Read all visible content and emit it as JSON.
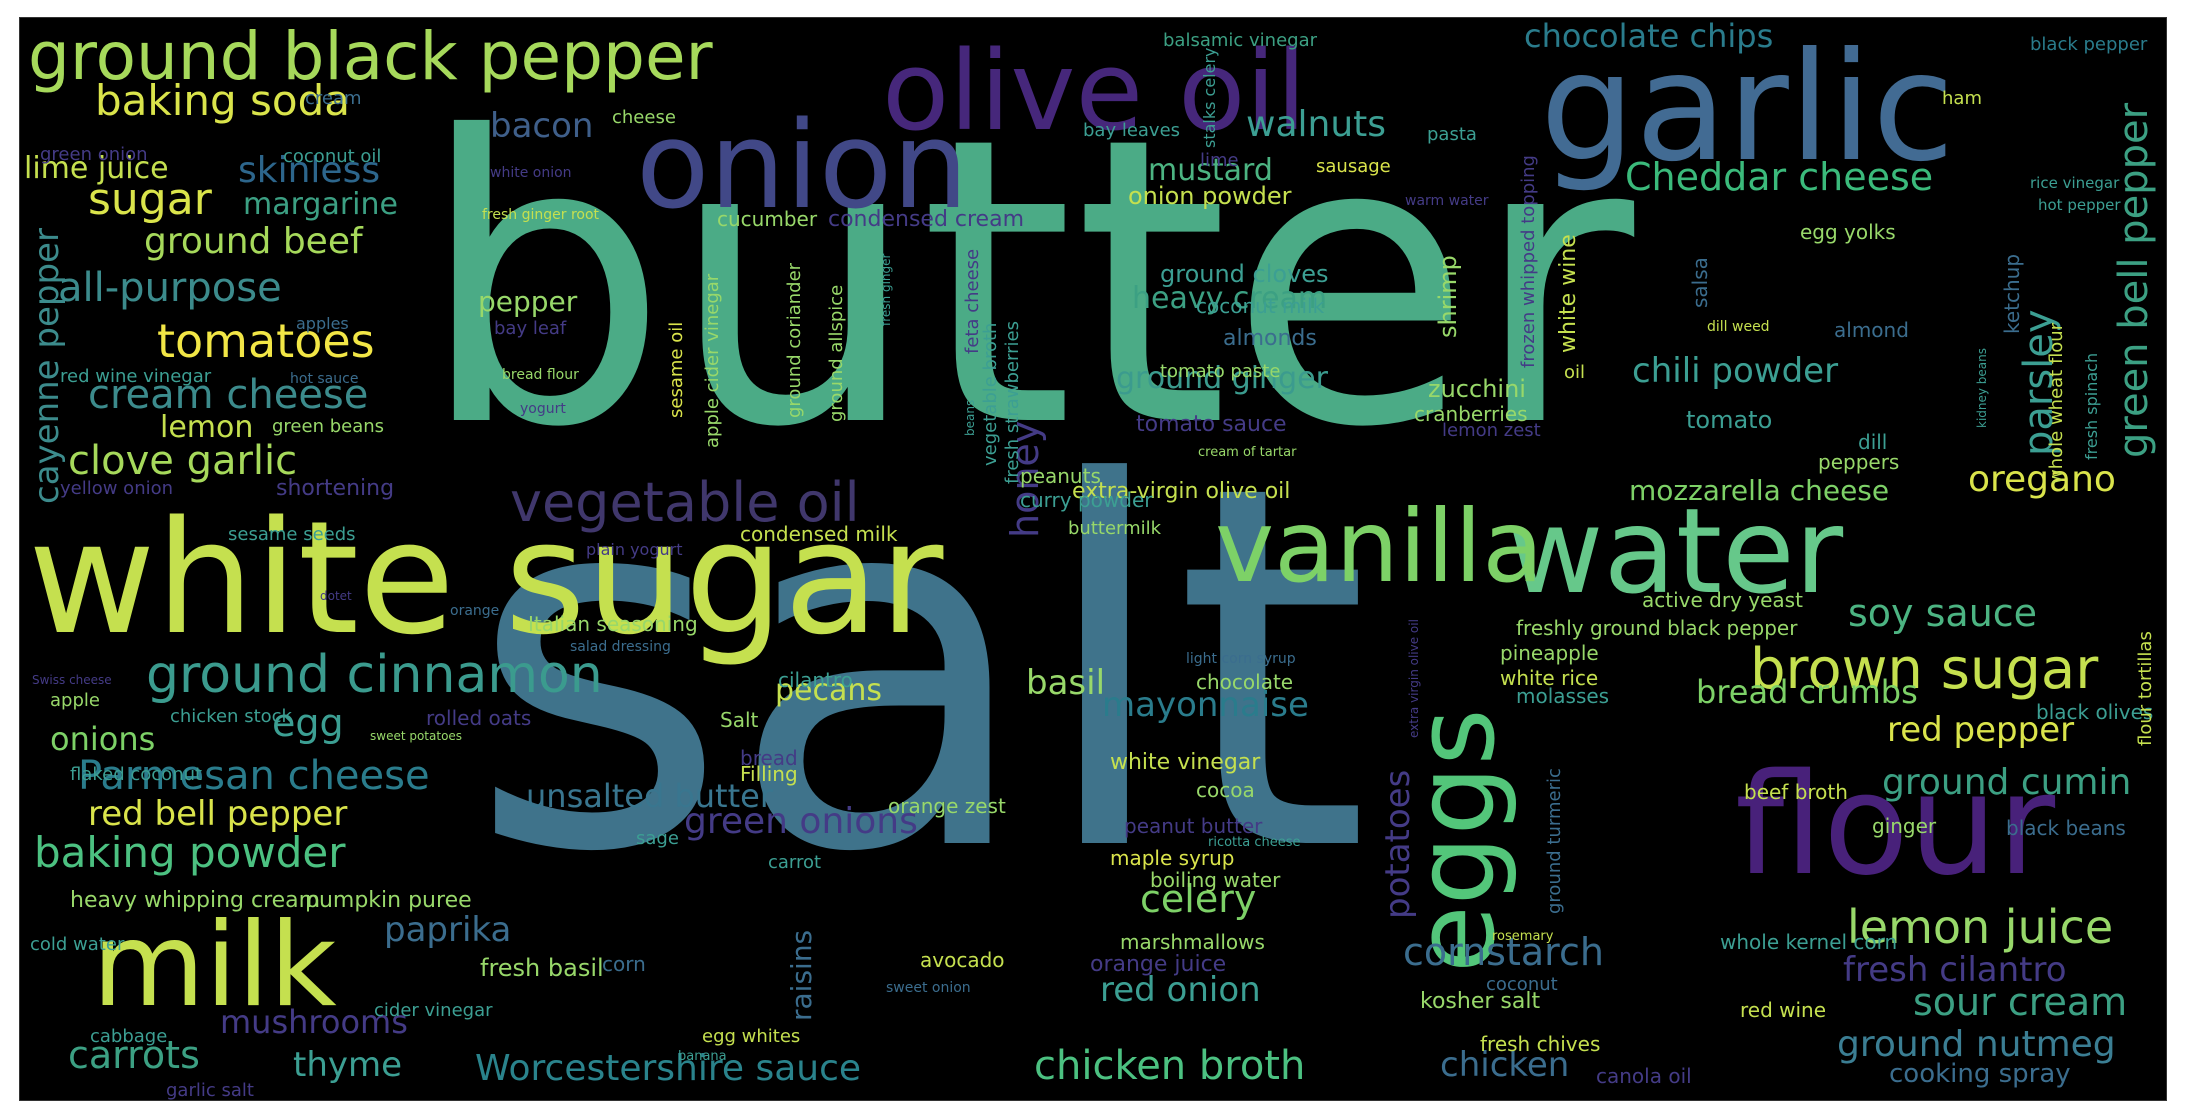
{
  "words": [
    {
      "text": "butter",
      "color": "#4bab86"
    },
    {
      "text": "salt",
      "color": "#3f738b"
    },
    {
      "text": "white sugar",
      "color": "#c5e04f"
    },
    {
      "text": "water",
      "color": "#66c88a"
    },
    {
      "text": "garlic",
      "color": "#426b93"
    },
    {
      "text": "vanilla",
      "color": "#7dd167"
    },
    {
      "text": "onion",
      "color": "#414887"
    },
    {
      "text": "olive oil",
      "color": "#46277b"
    },
    {
      "text": "flour",
      "color": "#48217a"
    },
    {
      "text": "eggs",
      "color": "#53c67a"
    },
    {
      "text": "milk",
      "color": "#c5e04f"
    },
    {
      "text": "ground black pepper",
      "color": "#a6d95b"
    },
    {
      "text": "vegetable oil",
      "color": "#40376c"
    },
    {
      "text": "brown sugar",
      "color": "#c5e04f"
    },
    {
      "text": "ground cinnamon",
      "color": "#3b9b8e"
    },
    {
      "text": "lemon juice",
      "color": "#98d86a"
    },
    {
      "text": "baking soda",
      "color": "#dae44b"
    },
    {
      "text": "Parmesan cheese",
      "color": "#2a7c8c"
    },
    {
      "text": "baking powder",
      "color": "#4cc181"
    },
    {
      "text": "chocolate chips",
      "color": "#2a7c8c"
    },
    {
      "text": "Cheddar cheese",
      "color": "#3bba7b"
    },
    {
      "text": "chicken broth",
      "color": "#4cc181"
    },
    {
      "text": "Worcestershire sauce",
      "color": "#2a838c"
    },
    {
      "text": "sour cream",
      "color": "#3ca083"
    },
    {
      "text": "ground nutmeg",
      "color": "#3b7e93"
    },
    {
      "text": "fresh cilantro",
      "color": "#443b86"
    },
    {
      "text": "tomatoes",
      "color": "#f2e646"
    },
    {
      "text": "cream cheese",
      "color": "#3c8b8c"
    },
    {
      "text": "clove garlic",
      "color": "#a6d95b"
    },
    {
      "text": "all-purpose",
      "color": "#3c8b8c"
    },
    {
      "text": "ground beef",
      "color": "#a6d95b"
    },
    {
      "text": "sugar",
      "color": "#dae44b"
    },
    {
      "text": "skinless",
      "color": "#2d668c"
    },
    {
      "text": "margarine",
      "color": "#3ca083"
    },
    {
      "text": "lime juice",
      "color": "#c5e04f"
    },
    {
      "text": "bacon",
      "color": "#3f5f8a"
    },
    {
      "text": "walnuts",
      "color": "#3c9f93"
    },
    {
      "text": "mustard",
      "color": "#4cb482"
    },
    {
      "text": "onion powder",
      "color": "#c5e04f"
    },
    {
      "text": "red bell pepper",
      "color": "#dae44b"
    },
    {
      "text": "egg",
      "color": "#3c9f93"
    },
    {
      "text": "onions",
      "color": "#7dd167"
    },
    {
      "text": "unsalted butter",
      "color": "#39768f"
    },
    {
      "text": "green onions",
      "color": "#443b86"
    },
    {
      "text": "mayonnaise",
      "color": "#2a7c8c"
    },
    {
      "text": "red pepper",
      "color": "#dae44b"
    },
    {
      "text": "ground cumin",
      "color": "#3ca083"
    },
    {
      "text": "bread crumbs",
      "color": "#7dd167"
    },
    {
      "text": "soy sauce",
      "color": "#4cb482"
    },
    {
      "text": "oregano",
      "color": "#dae44b"
    },
    {
      "text": "mozzarella cheese",
      "color": "#7dd167"
    },
    {
      "text": "chili powder",
      "color": "#3c9f93"
    },
    {
      "text": "parsley",
      "color": "#3c9f93"
    },
    {
      "text": "green bell pepper",
      "color": "#3ca083"
    },
    {
      "text": "cayenne pepper",
      "color": "#3c8b8c"
    },
    {
      "text": "honey",
      "color": "#443b86"
    },
    {
      "text": "potatoes",
      "color": "#443b86"
    },
    {
      "text": "eggs",
      "color": "#53c67a"
    },
    {
      "text": "cornstarch",
      "color": "#3b6d8e"
    },
    {
      "text": "paprika",
      "color": "#3b6d8e"
    },
    {
      "text": "mushrooms",
      "color": "#443b86"
    },
    {
      "text": "carrots",
      "color": "#3ca083"
    },
    {
      "text": "thyme",
      "color": "#3c9f93"
    },
    {
      "text": "celery",
      "color": "#7dd167"
    },
    {
      "text": "red onion",
      "color": "#3c9f93"
    },
    {
      "text": "chicken",
      "color": "#3b6d8e"
    },
    {
      "text": "basil",
      "color": "#98d86a"
    },
    {
      "text": "pecans",
      "color": "#c5e04f"
    },
    {
      "text": "heavy cream",
      "color": "#3ca083"
    },
    {
      "text": "ground ginger",
      "color": "#3b9b8e"
    },
    {
      "text": "pepper",
      "color": "#98d86a"
    },
    {
      "text": "lemon",
      "color": "#c5e04f"
    },
    {
      "text": "extra-virgin olive oil",
      "color": "#c5e04f"
    },
    {
      "text": "kosher salt",
      "color": "#98d86a"
    },
    {
      "text": "cooking spray",
      "color": "#3b6d8e"
    },
    {
      "text": "heavy whipping cream",
      "color": "#98d86a"
    },
    {
      "text": "pumpkin puree",
      "color": "#98d86a"
    },
    {
      "text": "raisins",
      "color": "#3b6d8e"
    },
    {
      "text": "fresh basil",
      "color": "#98d86a"
    },
    {
      "text": "tomato",
      "color": "#3c9f93"
    },
    {
      "text": "zucchini",
      "color": "#98d86a"
    },
    {
      "text": "shrimp",
      "color": "#98d86a"
    },
    {
      "text": "ground cloves",
      "color": "#3c9f93"
    },
    {
      "text": "balsamic vinegar",
      "color": "#3ca083"
    },
    {
      "text": "black pepper",
      "color": "#2a7c8c"
    },
    {
      "text": "bay leaves",
      "color": "#3c9f93"
    },
    {
      "text": "pasta",
      "color": "#3c9f93"
    },
    {
      "text": "ham",
      "color": "#c5e04f"
    },
    {
      "text": "cheese",
      "color": "#98d86a"
    },
    {
      "text": "coconut oil",
      "color": "#3c9f93"
    },
    {
      "text": "green onion",
      "color": "#443b86"
    },
    {
      "text": "cream",
      "color": "#3b6d8e"
    },
    {
      "text": "sausage",
      "color": "#dae44b"
    },
    {
      "text": "lime",
      "color": "#443b86"
    },
    {
      "text": "white onion",
      "color": "#443b86"
    },
    {
      "text": "fresh ginger root",
      "color": "#c5e04f"
    },
    {
      "text": "warm water",
      "color": "#443b86"
    },
    {
      "text": "rice vinegar",
      "color": "#3c9f93"
    },
    {
      "text": "hot pepper",
      "color": "#3c9f93"
    },
    {
      "text": "egg yolks",
      "color": "#98d86a"
    },
    {
      "text": "cucumber",
      "color": "#98d86a"
    },
    {
      "text": "condensed cream",
      "color": "#443b86"
    },
    {
      "text": "coconut milk",
      "color": "#3c9f93"
    },
    {
      "text": "almonds",
      "color": "#3b6d8e"
    },
    {
      "text": "almond",
      "color": "#3b6d8e"
    },
    {
      "text": "dill weed",
      "color": "#c5e04f"
    },
    {
      "text": "salsa",
      "color": "#3b6d8e"
    },
    {
      "text": "ketchup",
      "color": "#3b6d8e"
    },
    {
      "text": "white wine",
      "color": "#c5e04f"
    },
    {
      "text": "oil",
      "color": "#c5e04f"
    },
    {
      "text": "frozen whipped topping",
      "color": "#443b86"
    },
    {
      "text": "whole wheat flour",
      "color": "#c5e04f"
    },
    {
      "text": "fresh spinach",
      "color": "#3c9f93"
    },
    {
      "text": "kidney beans",
      "color": "#3c9f93"
    },
    {
      "text": "tomato paste",
      "color": "#98d86a"
    },
    {
      "text": "tomato sauce",
      "color": "#443b86"
    },
    {
      "text": "cranberries",
      "color": "#98d86a"
    },
    {
      "text": "lemon zest",
      "color": "#443b86"
    },
    {
      "text": "cream of tartar",
      "color": "#98d86a"
    },
    {
      "text": "peppers",
      "color": "#98d86a"
    },
    {
      "text": "dill",
      "color": "#3c9f93"
    },
    {
      "text": "peanuts",
      "color": "#98d86a"
    },
    {
      "text": "curry powder",
      "color": "#3c9f93"
    },
    {
      "text": "buttermilk",
      "color": "#98d86a"
    },
    {
      "text": "condensed milk",
      "color": "#c5e04f"
    },
    {
      "text": "sesame seeds",
      "color": "#3c9f93"
    },
    {
      "text": "plain yogurt",
      "color": "#443b86"
    },
    {
      "text": "yellow onion",
      "color": "#443b86"
    },
    {
      "text": "shortening",
      "color": "#443b86"
    },
    {
      "text": "green beans",
      "color": "#98d86a"
    },
    {
      "text": "red wine vinegar",
      "color": "#3c9f93"
    },
    {
      "text": "hot sauce",
      "color": "#3b6d8e"
    },
    {
      "text": "bread flour",
      "color": "#98d86a"
    },
    {
      "text": "yogurt",
      "color": "#443b86"
    },
    {
      "text": "bay leaf",
      "color": "#443b86"
    },
    {
      "text": "apples",
      "color": "#3b6d8e"
    },
    {
      "text": "sesame oil",
      "color": "#dae44b"
    },
    {
      "text": "apple cider vinegar",
      "color": "#98d86a"
    },
    {
      "text": "ground coriander",
      "color": "#98d86a"
    },
    {
      "text": "ground allspice",
      "color": "#98d86a"
    },
    {
      "text": "fresh ginger",
      "color": "#3c9f93"
    },
    {
      "text": "feta cheese",
      "color": "#443b86"
    },
    {
      "text": "beans",
      "color": "#3c9f93"
    },
    {
      "text": "vegetable broth",
      "color": "#3c9f93"
    },
    {
      "text": "fresh strawberries",
      "color": "#3c9f93"
    },
    {
      "text": "Italian seasoning",
      "color": "#98d86a"
    },
    {
      "text": "salad dressing",
      "color": "#3b6d8e"
    },
    {
      "text": "dotet",
      "color": "#443b86"
    },
    {
      "text": "orange",
      "color": "#3b6d8e"
    },
    {
      "text": "Swiss cheese",
      "color": "#443b86"
    },
    {
      "text": "apple",
      "color": "#98d86a"
    },
    {
      "text": "chicken stock",
      "color": "#3c9f93"
    },
    {
      "text": "rolled oats",
      "color": "#443b86"
    },
    {
      "text": "sweet potatoes",
      "color": "#98d86a"
    },
    {
      "text": "cilantro",
      "color": "#3c9f93"
    },
    {
      "text": "Salt",
      "color": "#98d86a"
    },
    {
      "text": "bread",
      "color": "#443b86"
    },
    {
      "text": "Filling",
      "color": "#c5e04f"
    },
    {
      "text": "flaked coconut",
      "color": "#3c9f93"
    },
    {
      "text": "light corn syrup",
      "color": "#3b6d8e"
    },
    {
      "text": "chocolate",
      "color": "#98d86a"
    },
    {
      "text": "freshly ground black pepper",
      "color": "#98d86a"
    },
    {
      "text": "active dry yeast",
      "color": "#98d86a"
    },
    {
      "text": "pineapple",
      "color": "#98d86a"
    },
    {
      "text": "white rice",
      "color": "#c5e04f"
    },
    {
      "text": "molasses",
      "color": "#3c9f93"
    },
    {
      "text": "extra virgin olive oil",
      "color": "#443b86"
    },
    {
      "text": "black olives",
      "color": "#3c9f93"
    },
    {
      "text": "flour tortillas",
      "color": "#c5e04f"
    },
    {
      "text": "ground turmeric",
      "color": "#3b6d8e"
    },
    {
      "text": "white vinegar",
      "color": "#c5e04f"
    },
    {
      "text": "cocoa",
      "color": "#98d86a"
    },
    {
      "text": "orange zest",
      "color": "#98d86a"
    },
    {
      "text": "peanut butter",
      "color": "#443b86"
    },
    {
      "text": "sage",
      "color": "#3c9f93"
    },
    {
      "text": "carrot",
      "color": "#3c9f93"
    },
    {
      "text": "ricotta cheese",
      "color": "#3c9f93"
    },
    {
      "text": "maple syrup",
      "color": "#dae44b"
    },
    {
      "text": "boiling water",
      "color": "#98d86a"
    },
    {
      "text": "ginger",
      "color": "#98d86a"
    },
    {
      "text": "beef broth",
      "color": "#c5e04f"
    },
    {
      "text": "black beans",
      "color": "#3b6d8e"
    },
    {
      "text": "marshmallows",
      "color": "#98d86a"
    },
    {
      "text": "corn",
      "color": "#3b6d8e"
    },
    {
      "text": "avocado",
      "color": "#c5e04f"
    },
    {
      "text": "orange juice",
      "color": "#443b86"
    },
    {
      "text": "cold water",
      "color": "#3c9f93"
    },
    {
      "text": "sweet onion",
      "color": "#3c9f93"
    },
    {
      "text": "cider vinegar",
      "color": "#3b6d8e"
    },
    {
      "text": "coconut",
      "color": "#3c9f93"
    },
    {
      "text": "rosemary",
      "color": "#3b6d8e"
    },
    {
      "text": "whole kernel corn",
      "color": "#c5e04f"
    },
    {
      "text": "red wine",
      "color": "#3c9f93"
    },
    {
      "text": "cabbage",
      "color": "#c5e04f"
    },
    {
      "text": "egg whites",
      "color": "#3c9f93"
    },
    {
      "text": "banana",
      "color": "#c5e04f"
    },
    {
      "text": "fresh chives",
      "color": "#3c9f93"
    },
    {
      "text": "garlic salt",
      "color": "#c5e04f"
    },
    {
      "text": "canola oil",
      "color": "#443b86"
    },
    {
      "text": "stalks celery",
      "color": "#443b86"
    },
    {
      "text": "bananas",
      "color": "#3c9f93"
    }
  ]
}
